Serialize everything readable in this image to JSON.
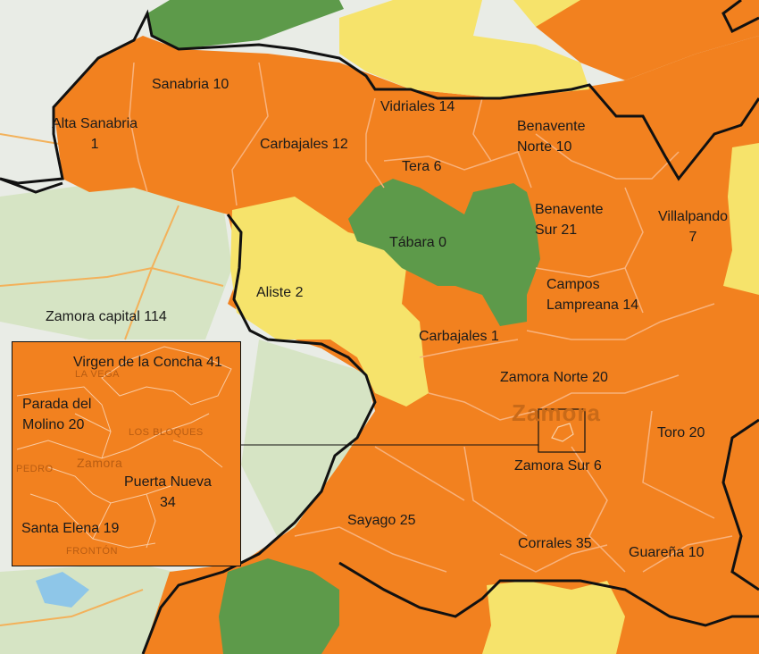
{
  "colors": {
    "orange": "#f2811f",
    "yellow": "#f6e36b",
    "green": "#5d9a4a",
    "base_map": "#e9ece6",
    "border": "#111111"
  },
  "regions": {
    "alta_sanabria": {
      "name": "Alta Sanabria",
      "value": "1"
    },
    "sanabria": "Sanabria 10",
    "carbajales_12": "Carbajales 12",
    "vidriales": "Vidriales 14",
    "benavente_norte": {
      "name": "Benavente",
      "value": "Norte 10"
    },
    "tera": "Tera 6",
    "benavente_sur": {
      "name": "Benavente",
      "value": "Sur 21"
    },
    "villalpando": {
      "name": "Villalpando",
      "value": "7"
    },
    "tabara": "Tábara 0",
    "aliste": "Aliste 2",
    "campos_lampreana": {
      "name": "Campos",
      "value": "Lampreana 14"
    },
    "carbajales_1": "Carbajales 1",
    "zamora_norte": "Zamora Norte 20",
    "toro": "Toro 20",
    "zamora_sur": "Zamora Sur 6",
    "sayago": "Sayago 25",
    "corrales": "Corrales 35",
    "guarena": "Guareña 10"
  },
  "city_label": "Zamora capital 114",
  "inset": {
    "virgen_concha": "Virgen de la Concha 41",
    "parada_molino": {
      "name": "Parada del",
      "value": "Molino 20"
    },
    "puerta_nueva": {
      "name": "Puerta Nueva",
      "value": "34"
    },
    "santa_elena": "Santa Elena 19"
  }
}
